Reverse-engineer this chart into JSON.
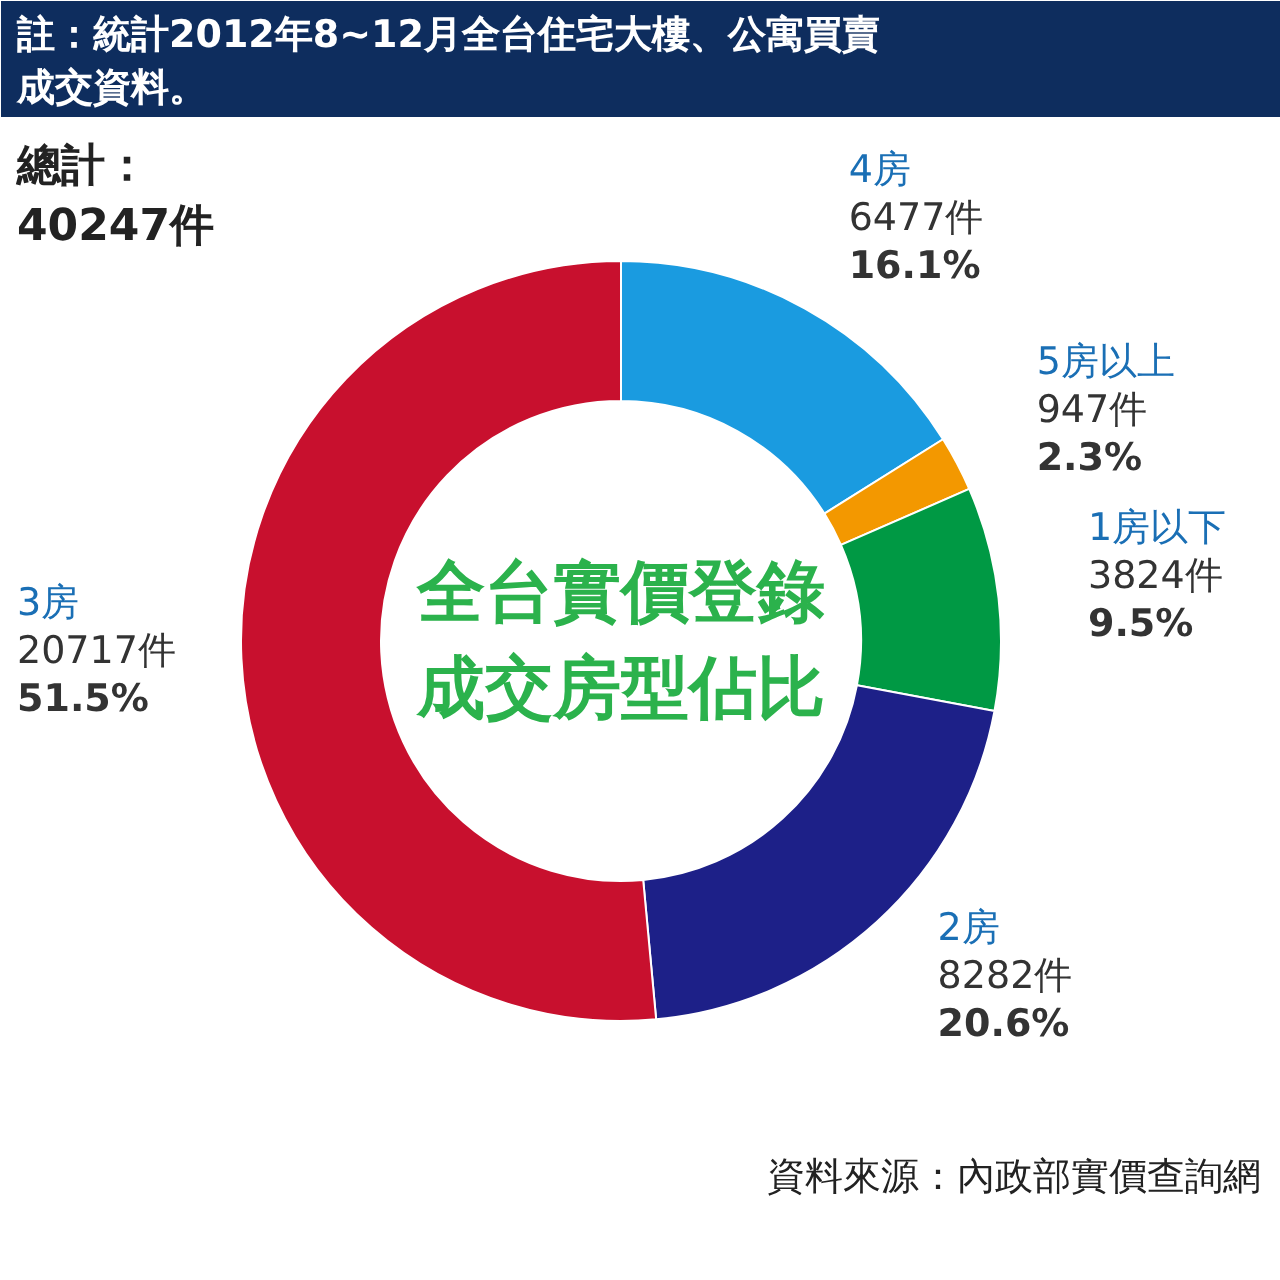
{
  "chart_data": {
    "type": "donut",
    "title": "全台實價登錄成交房型佔比",
    "subtitle": "註：統計2012年8~12月全台住宅大樓、公寓買賣成交資料。",
    "categories": [
      "4房",
      "5房以上",
      "1房以下",
      "2房",
      "3房"
    ],
    "values": [
      6477,
      947,
      3824,
      8282,
      20717
    ],
    "colors": [
      "#1a9be0",
      "#f39800",
      "#009944",
      "#1d2088",
      "#c8102e"
    ],
    "value_labels": [
      "6477件\n16.1%",
      "947件\n2.3%",
      "3824件\n9.5%",
      "8282件\n20.6%",
      "20717件\n51.5%"
    ],
    "annotations": [
      "總計：\n40247件",
      "資料來源：內政部實價查詢網"
    ]
  }
}
